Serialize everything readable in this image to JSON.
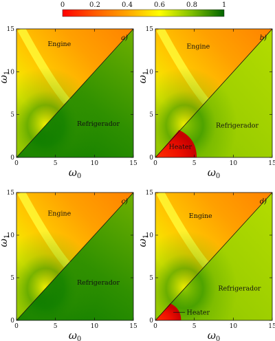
{
  "figure": {
    "colorbar": {
      "ticks": [
        "0",
        "0.2",
        "0.4",
        "0.6",
        "0.8",
        "1"
      ],
      "stops": [
        {
          "v": 0.0,
          "color": "#ff0000"
        },
        {
          "v": 0.2,
          "color": "#ff5a00"
        },
        {
          "v": 0.4,
          "color": "#ffa500"
        },
        {
          "v": 0.6,
          "color": "#ffff00"
        },
        {
          "v": 0.8,
          "color": "#7fbf00"
        },
        {
          "v": 1.0,
          "color": "#006400"
        }
      ]
    }
  },
  "chart_data": [
    {
      "type": "heatmap",
      "panel_label": "a)",
      "xlabel": "ω",
      "xlabel_sub": "0",
      "ylabel": "ω",
      "ylabel_sub": "1",
      "xlim": [
        0,
        15
      ],
      "ylim": [
        0,
        15
      ],
      "xticks": [
        "0",
        "5",
        "10",
        "15"
      ],
      "yticks": [
        "0",
        "5",
        "10",
        "15"
      ],
      "boundary": "diagonal ω1 = ω0",
      "regions": [
        {
          "label": "Engine",
          "at": [
            5.5,
            13
          ]
        },
        {
          "label": "Refrigerador",
          "at": [
            10.5,
            3.7
          ]
        }
      ],
      "heater": null
    },
    {
      "type": "heatmap",
      "panel_label": "b)",
      "xlabel": "ω",
      "xlabel_sub": "0",
      "ylabel": "ω",
      "ylabel_sub": "1",
      "xlim": [
        0,
        15
      ],
      "ylim": [
        0,
        15
      ],
      "xticks": [
        "0",
        "5",
        "10",
        "15"
      ],
      "yticks": [
        "0",
        "5",
        "10",
        "15"
      ],
      "boundary": "diagonal ω1 = ω0",
      "regions": [
        {
          "label": "Engine",
          "at": [
            5.5,
            12.7
          ]
        },
        {
          "label": "Refrigerador",
          "at": [
            10.5,
            3.5
          ]
        },
        {
          "label": "Heater",
          "at": [
            3.2,
            1.0
          ]
        }
      ],
      "heater": {
        "x_max": 5.3,
        "y_max": 3.2
      }
    },
    {
      "type": "heatmap",
      "panel_label": "c)",
      "xlabel": "ω",
      "xlabel_sub": "0",
      "ylabel": "ω",
      "ylabel_sub": "1",
      "xlim": [
        0,
        15
      ],
      "ylim": [
        0,
        15
      ],
      "xticks": [
        "0",
        "5",
        "10",
        "15"
      ],
      "yticks": [
        "0",
        "5",
        "10",
        "15"
      ],
      "boundary": "diagonal ω1 = ω0",
      "regions": [
        {
          "label": "Engine",
          "at": [
            5.5,
            12.3
          ]
        },
        {
          "label": "Refrigerador",
          "at": [
            10.5,
            4.2
          ]
        }
      ],
      "heater": null
    },
    {
      "type": "heatmap",
      "panel_label": "d)",
      "xlabel": "ω",
      "xlabel_sub": "0",
      "ylabel": "ω",
      "ylabel_sub": "1",
      "xlim": [
        0,
        15
      ],
      "ylim": [
        0,
        15
      ],
      "xticks": [
        "0",
        "5",
        "10",
        "15"
      ],
      "yticks": [
        "0",
        "5",
        "10",
        "15"
      ],
      "boundary": "diagonal ω1 = ω0",
      "regions": [
        {
          "label": "Engine",
          "at": [
            5.8,
            12.0
          ]
        },
        {
          "label": "Refrigerador",
          "at": [
            10.8,
            3.5
          ]
        },
        {
          "label": "Heater",
          "at": [
            5.5,
            0.7
          ]
        }
      ],
      "heater": {
        "x_max": 3.3,
        "y_max": 2.0
      }
    }
  ]
}
